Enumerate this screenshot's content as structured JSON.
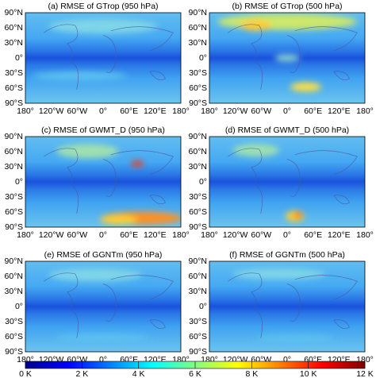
{
  "panels": [
    {
      "title": "(a) RMSE of GTrop (950 hPa)"
    },
    {
      "title": "(b) RMSE of GTrop (500 hPa)"
    },
    {
      "title": "(c) RMSE of GWMT_D (950 hPa)"
    },
    {
      "title": "(d) RMSE of GWMT_D (500 hPa)"
    },
    {
      "title": "(e) RMSE of GGNTm (950 hPa)"
    },
    {
      "title": "(f) RMSE of GGNTm (500 hPa)"
    }
  ],
  "lat_labels": [
    "90°N",
    "60°N",
    "30°N",
    "0°",
    "30°S",
    "60°S",
    "90°S"
  ],
  "lon_labels": [
    "180°",
    "120°W",
    "60°W",
    "0°",
    "60°E",
    "120°E",
    "180°"
  ],
  "colorbar": {
    "lim": [
      0,
      12
    ],
    "ticks": [
      {
        "value": 0,
        "label": "0 K"
      },
      {
        "value": 2,
        "label": "2 K"
      },
      {
        "value": 4,
        "label": "4 K"
      },
      {
        "value": 6,
        "label": "6 K"
      },
      {
        "value": 8,
        "label": "8 K"
      },
      {
        "value": 10,
        "label": "10 K"
      },
      {
        "value": 12,
        "label": "12 K"
      }
    ]
  }
}
